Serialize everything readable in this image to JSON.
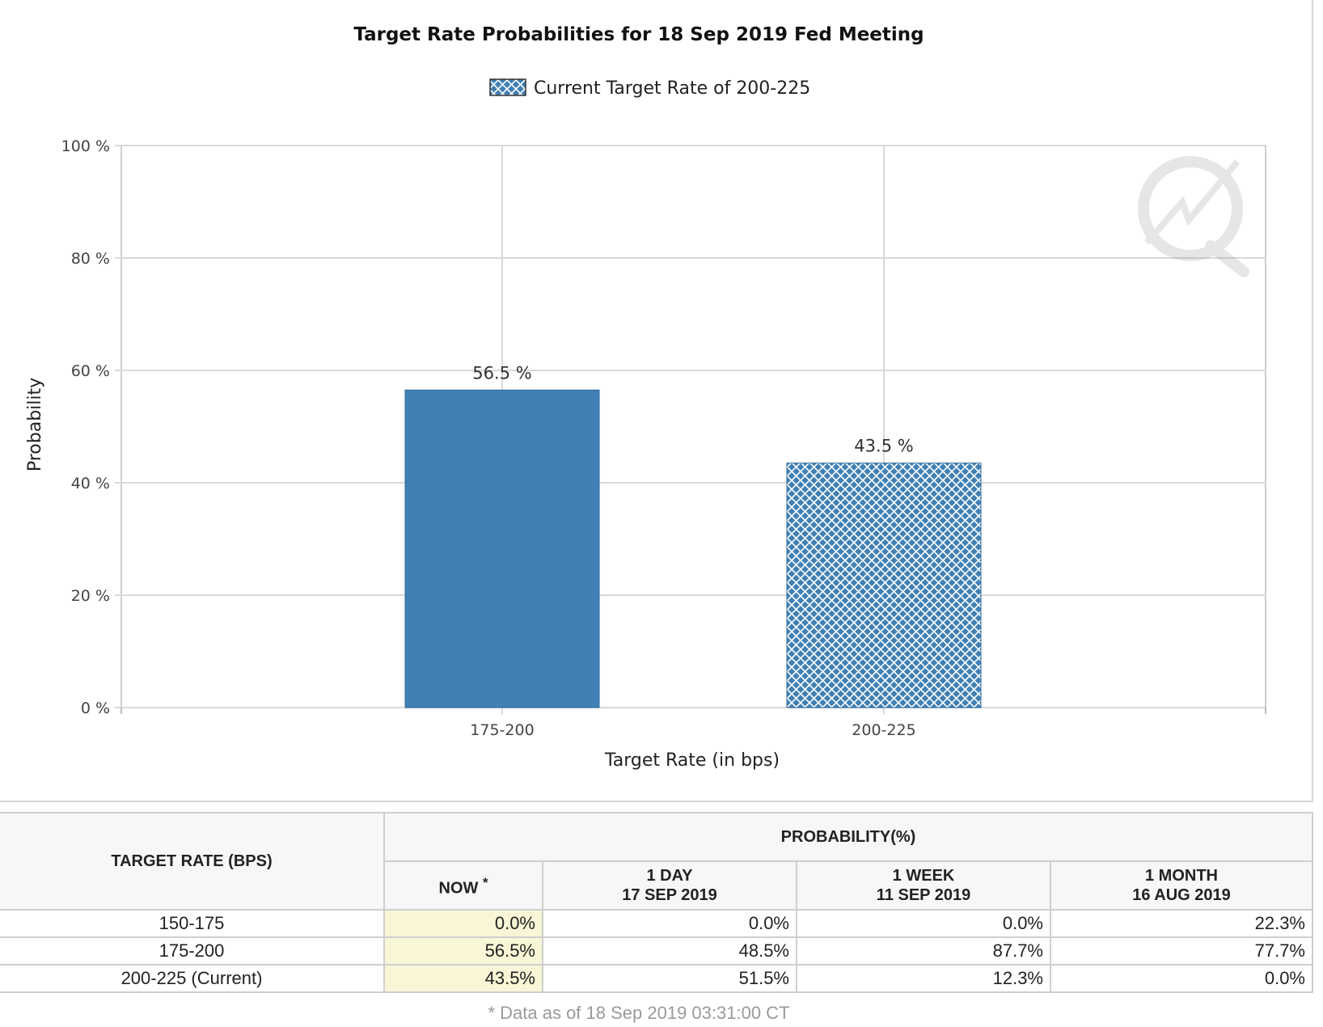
{
  "chart_data": {
    "type": "bar",
    "title": "Target Rate Probabilities for 18 Sep 2019 Fed Meeting",
    "legend": [
      "Current Target Rate of 200-225"
    ],
    "xlabel": "Target Rate (in bps)",
    "ylabel": "Probability",
    "categories": [
      "175-200",
      "200-225"
    ],
    "values": [
      56.5,
      43.5
    ],
    "value_labels": [
      "56.5 %",
      "43.5 %"
    ],
    "ylim": [
      0,
      100
    ],
    "yticks": [
      0,
      20,
      40,
      60,
      80,
      100
    ],
    "ytick_labels": [
      "0 %",
      "20 %",
      "40 %",
      "60 %",
      "80 %",
      "100 %"
    ],
    "grid": true,
    "legend_position": "top",
    "current_category": "200-225",
    "colors": {
      "bar": "#4180b4",
      "hatch": "#ffffff",
      "grid": "#d9d9d9"
    }
  },
  "table": {
    "row_header": "TARGET RATE (BPS)",
    "group_header": "PROBABILITY(%)",
    "columns": [
      {
        "line1": "NOW",
        "sup": "*",
        "line2": ""
      },
      {
        "line1": "1 DAY",
        "line2": "17 SEP 2019"
      },
      {
        "line1": "1 WEEK",
        "line2": "11 SEP 2019"
      },
      {
        "line1": "1 MONTH",
        "line2": "16 AUG 2019"
      }
    ],
    "rows": [
      {
        "rate": "150-175",
        "values": [
          "0.0%",
          "0.0%",
          "0.0%",
          "22.3%"
        ]
      },
      {
        "rate": "175-200",
        "values": [
          "56.5%",
          "48.5%",
          "87.7%",
          "77.7%"
        ]
      },
      {
        "rate": "200-225 (Current)",
        "values": [
          "43.5%",
          "51.5%",
          "12.3%",
          "0.0%"
        ]
      }
    ],
    "note": "* Data as of 18 Sep 2019 03:31:00 CT"
  }
}
